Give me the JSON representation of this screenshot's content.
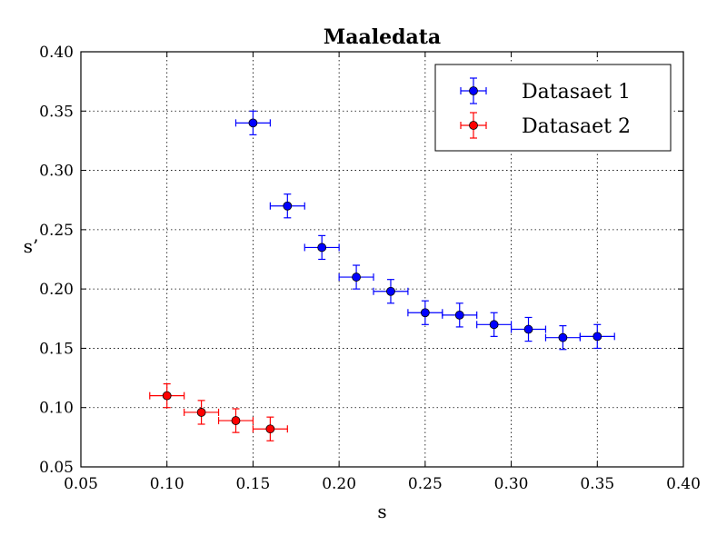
{
  "chart_data": {
    "type": "scatter",
    "title": "Maaledata",
    "xlabel": "s",
    "ylabel": "s’",
    "xlim": [
      0.05,
      0.4
    ],
    "ylim": [
      0.05,
      0.4
    ],
    "xticks": [
      "0.05",
      "0.10",
      "0.15",
      "0.20",
      "0.25",
      "0.30",
      "0.35",
      "0.40"
    ],
    "yticks": [
      "0.05",
      "0.10",
      "0.15",
      "0.20",
      "0.25",
      "0.30",
      "0.35",
      "0.40"
    ],
    "grid": true,
    "legend_position": "top-right",
    "series": [
      {
        "name": "Datasaet 1",
        "color": "#0000ff",
        "x": [
          0.15,
          0.17,
          0.19,
          0.21,
          0.23,
          0.25,
          0.27,
          0.29,
          0.31,
          0.33,
          0.35
        ],
        "y": [
          0.34,
          0.27,
          0.235,
          0.21,
          0.198,
          0.18,
          0.178,
          0.17,
          0.166,
          0.159,
          0.16
        ],
        "xerr": 0.01,
        "yerr": 0.01
      },
      {
        "name": "Datasaet 2",
        "color": "#ff0000",
        "x": [
          0.1,
          0.12,
          0.14,
          0.16
        ],
        "y": [
          0.11,
          0.096,
          0.089,
          0.082
        ],
        "xerr": 0.01,
        "yerr": 0.01
      }
    ]
  }
}
